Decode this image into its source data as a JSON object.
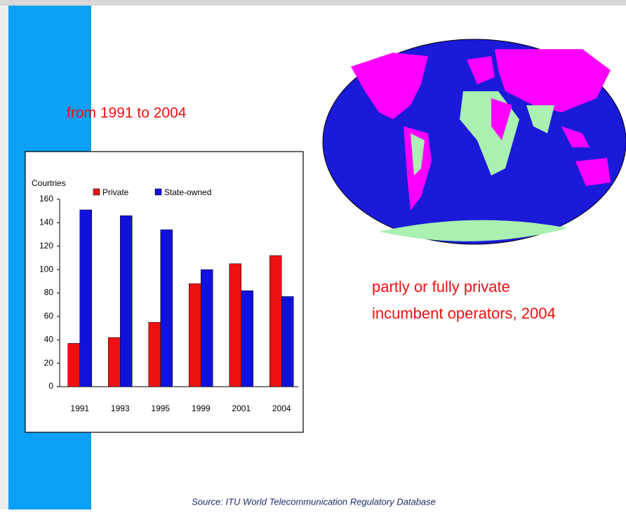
{
  "slide": {
    "heading": "from 1991 to 2004",
    "map_caption": [
      "partly or fully private",
      "incumbent operators, 2004"
    ],
    "source": "Source: ITU World Telecommunication Regulatory Database"
  },
  "chart_data": {
    "type": "bar",
    "ylabel": "Courtries",
    "categories": [
      "1991",
      "1993",
      "1995",
      "1999",
      "2001",
      "2004"
    ],
    "series": [
      {
        "name": "Private",
        "color": "#ee1111",
        "values": [
          37,
          42,
          55,
          88,
          105,
          112
        ]
      },
      {
        "name": "State-owned",
        "color": "#1111dd",
        "values": [
          151,
          146,
          134,
          100,
          82,
          77
        ]
      }
    ],
    "ylim": [
      0,
      160
    ],
    "yticks": [
      0,
      20,
      40,
      60,
      80,
      100,
      120,
      140,
      160
    ],
    "grid": false
  }
}
